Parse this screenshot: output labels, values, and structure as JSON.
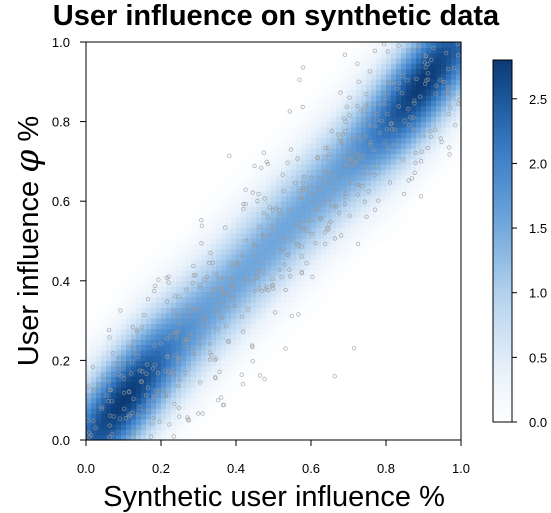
{
  "chart_data": {
    "type": "heatmap",
    "title": "User influence on synthetic data",
    "xlabel": "Synthetic user influence %",
    "ylabel_prefix": "User influence",
    "ylabel_symbol": "φ",
    "ylabel_suffix": "%",
    "xlim": [
      0,
      1
    ],
    "ylim": [
      0,
      1
    ],
    "x_ticks": [
      "0.0",
      "0.2",
      "0.4",
      "0.6",
      "0.8",
      "1.0"
    ],
    "y_ticks": [
      "0.0",
      "0.2",
      "0.4",
      "0.6",
      "0.8",
      "1.0"
    ],
    "grid": false,
    "density_spread": 0.1,
    "density_max": 2.8,
    "scatter_points": 600,
    "colorbar": {
      "range": [
        0,
        2.8
      ],
      "ticks": [
        "0.0",
        "0.5",
        "1.0",
        "1.5",
        "2.0",
        "2.5"
      ],
      "low_color": "#ffffff",
      "high_color": "#0b3a75",
      "placement": "right"
    },
    "colors": {
      "density_high": "#0b3a75",
      "density_mid": "#4a8fd0",
      "density_low": "#d6e6f6",
      "point": "#9a9a9a"
    }
  }
}
